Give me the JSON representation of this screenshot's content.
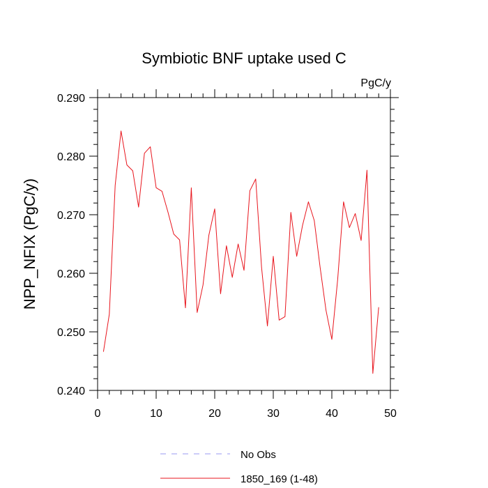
{
  "chart_data": {
    "type": "line",
    "title": "Symbiotic BNF uptake used C",
    "units": "PgC/y",
    "xlabel": "",
    "ylabel": "NPP_NFIX  (PgC/y)",
    "xlim": [
      0,
      50
    ],
    "ylim": [
      0.24,
      0.29
    ],
    "xticks": [
      0,
      10,
      20,
      30,
      40,
      50
    ],
    "xtick_labels": [
      "0",
      "10",
      "20",
      "30",
      "40",
      "50"
    ],
    "yticks": [
      0.24,
      0.25,
      0.26,
      0.27,
      0.28,
      0.29
    ],
    "ytick_labels": [
      "0.240",
      "0.250",
      "0.260",
      "0.270",
      "0.280",
      "0.290"
    ],
    "grid": false,
    "legend_position": "bottom-center",
    "series": [
      {
        "name": "1850_169 (1-48)",
        "color": "#e8141c",
        "style": "solid",
        "x": [
          1,
          2,
          3,
          4,
          5,
          6,
          7,
          8,
          9,
          10,
          11,
          12,
          13,
          14,
          15,
          16,
          17,
          18,
          19,
          20,
          21,
          22,
          23,
          24,
          25,
          26,
          27,
          28,
          29,
          30,
          31,
          32,
          33,
          34,
          35,
          36,
          37,
          38,
          39,
          40,
          41,
          42,
          43,
          44,
          45,
          46,
          47,
          48
        ],
        "y": [
          0.2466,
          0.253,
          0.275,
          0.2843,
          0.2785,
          0.2775,
          0.2713,
          0.2805,
          0.2816,
          0.2746,
          0.274,
          0.2705,
          0.2667,
          0.2657,
          0.2541,
          0.2746,
          0.2533,
          0.258,
          0.2665,
          0.271,
          0.2565,
          0.2647,
          0.2593,
          0.265,
          0.2605,
          0.2741,
          0.2761,
          0.261,
          0.251,
          0.2629,
          0.252,
          0.2526,
          0.2704,
          0.2629,
          0.2682,
          0.2722,
          0.269,
          0.261,
          0.2537,
          0.2487,
          0.259,
          0.2722,
          0.2678,
          0.2702,
          0.2656,
          0.2776,
          0.2429,
          0.2542
        ]
      }
    ],
    "legend": [
      {
        "label": "No Obs",
        "color": "#9a9af0",
        "style": "dashed"
      },
      {
        "label": "1850_169 (1-48)",
        "color": "#e8141c",
        "style": "solid"
      }
    ]
  }
}
